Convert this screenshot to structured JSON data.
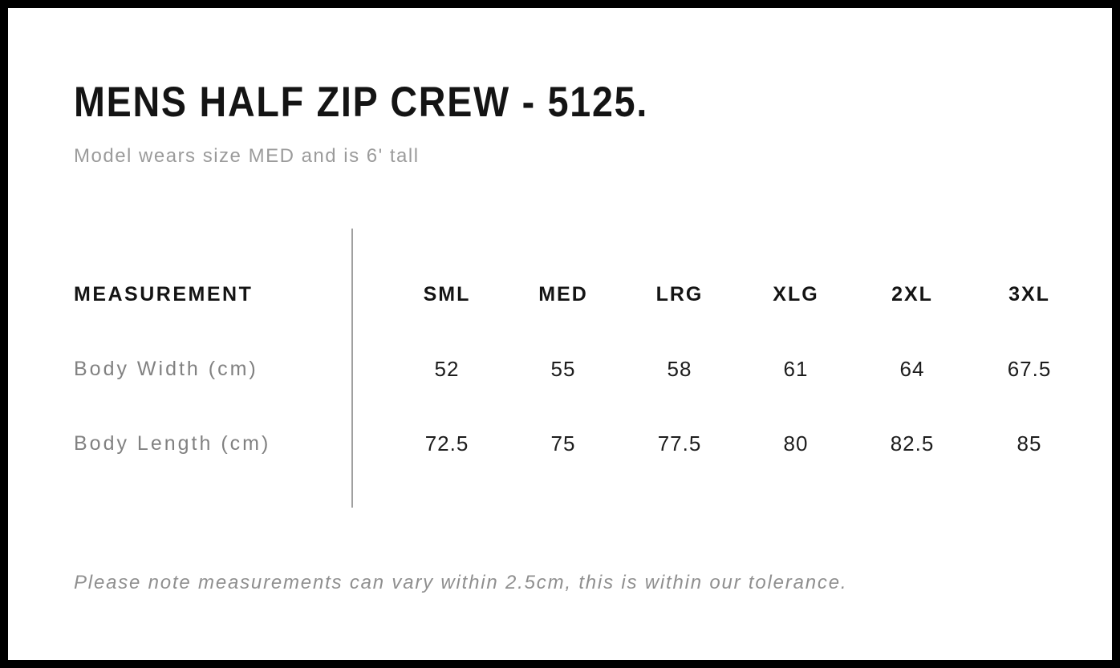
{
  "page": {
    "title": "MENS HALF ZIP CREW - 5125.",
    "subtitle": "Model wears size MED and is 6' tall",
    "footnote": "Please note measurements can vary within 2.5cm, this is within our tolerance."
  },
  "table": {
    "measurement_header": "MEASUREMENT",
    "columns": [
      "SML",
      "MED",
      "LRG",
      "XLG",
      "2XL",
      "3XL"
    ],
    "rows": [
      {
        "label": "Body Width (cm)",
        "values": [
          "52",
          "55",
          "58",
          "61",
          "64",
          "67.5"
        ]
      },
      {
        "label": "Body Length (cm)",
        "values": [
          "72.5",
          "75",
          "77.5",
          "80",
          "82.5",
          "85"
        ]
      }
    ]
  },
  "colors": {
    "frame_border": "#000000",
    "title_text": "#141414",
    "subtitle_text": "#9b9b9b",
    "row_label_text": "#818181",
    "value_text": "#1d1d1d",
    "divider": "#a0a0a0",
    "footnote_text": "#8f8f8f",
    "background": "#ffffff"
  }
}
